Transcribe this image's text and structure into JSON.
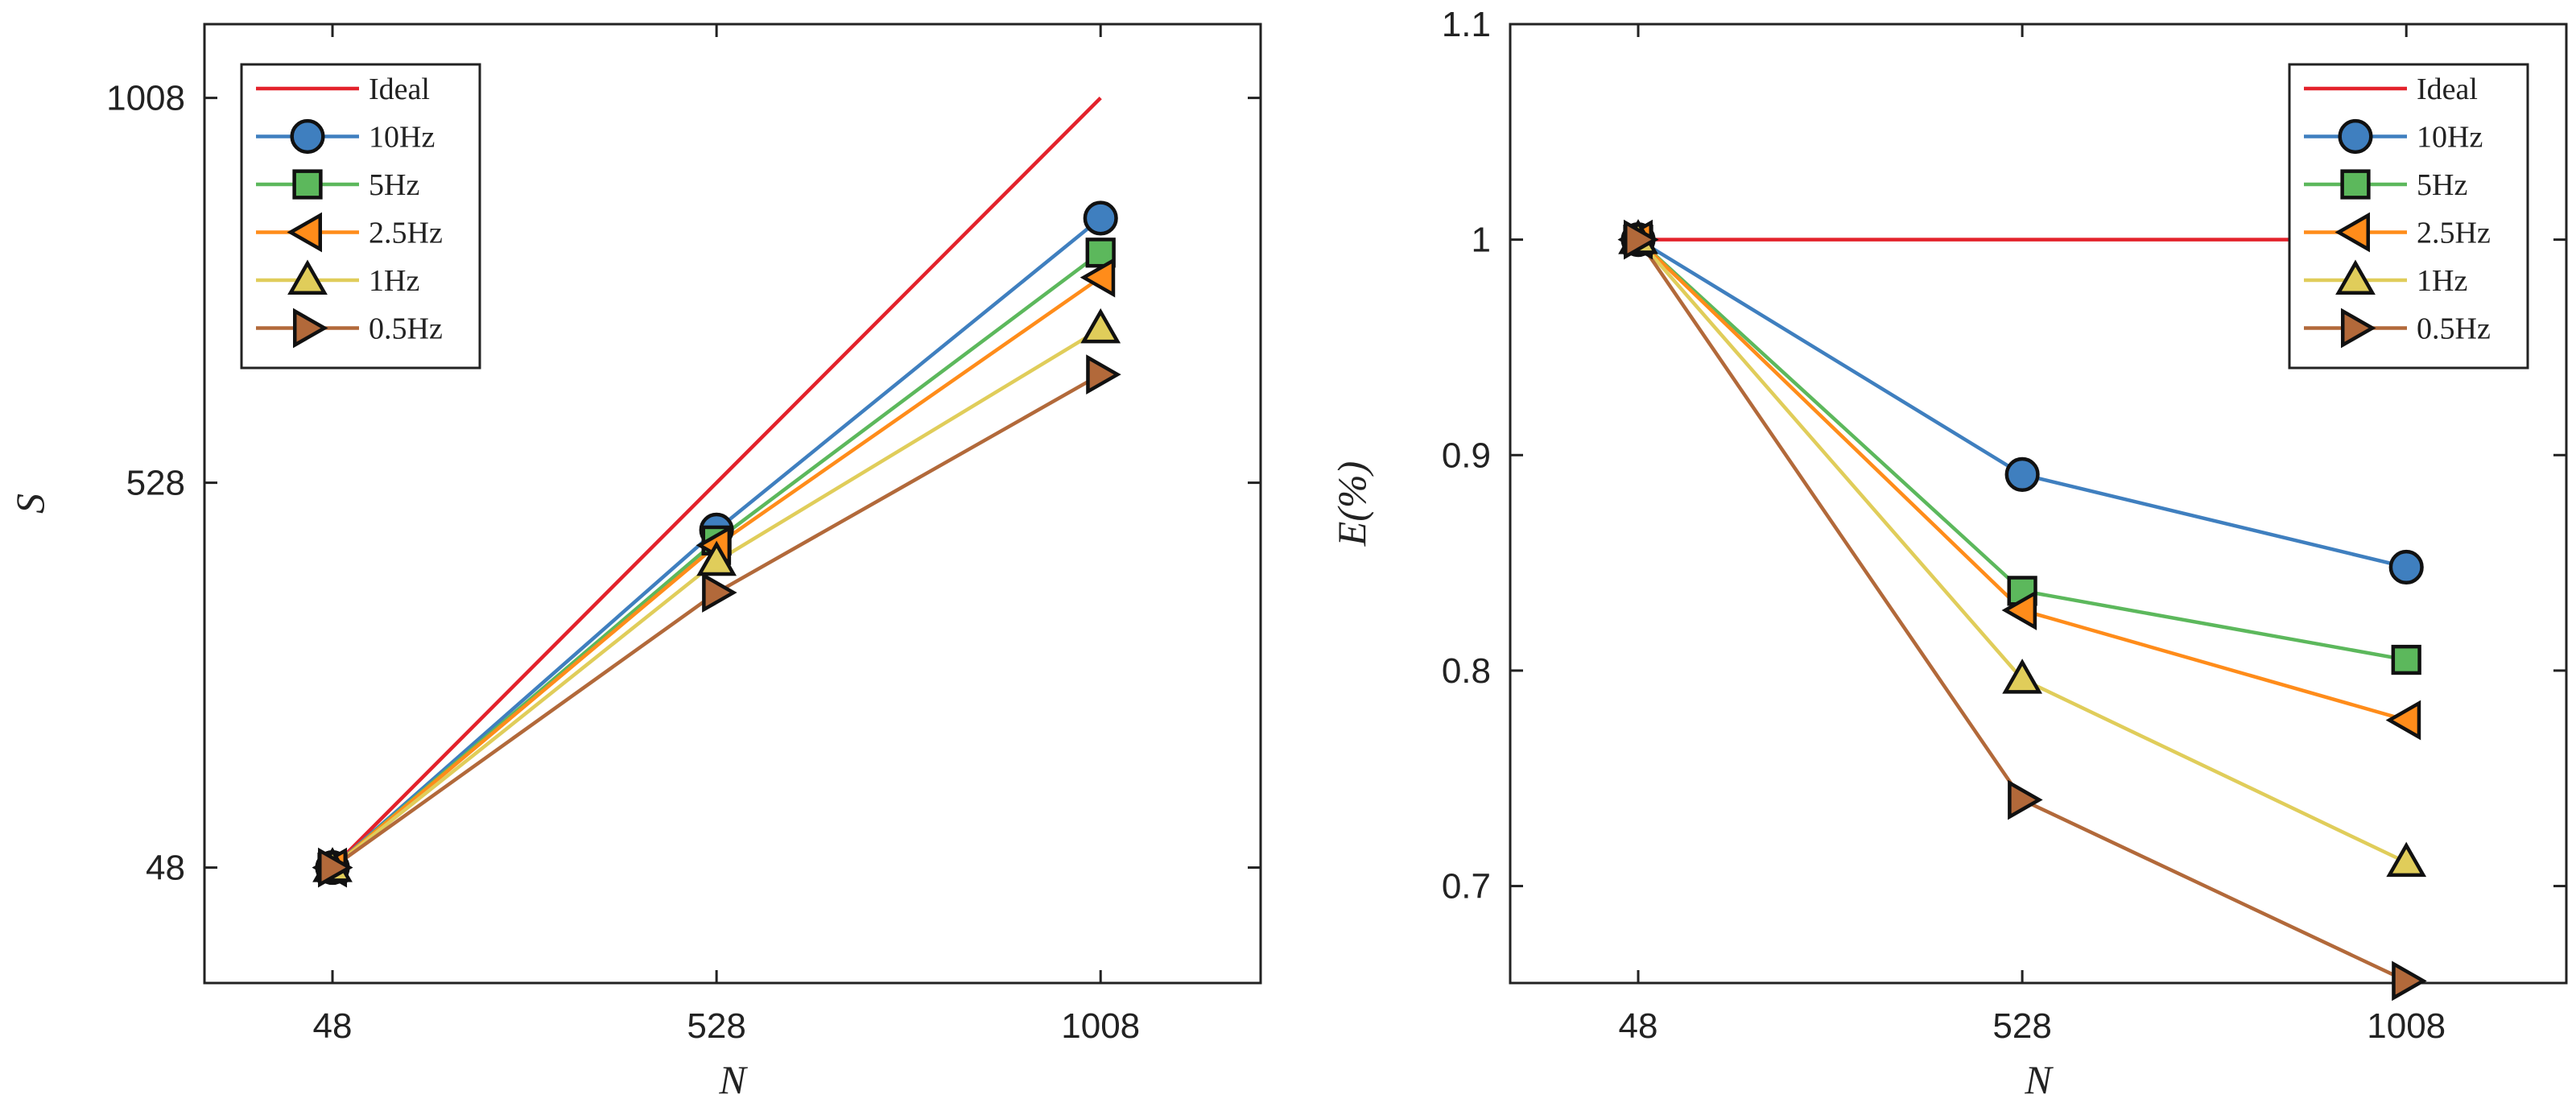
{
  "chart_data": [
    {
      "type": "line",
      "xlabel": "N",
      "ylabel": "S",
      "x": [
        48,
        528,
        1008
      ],
      "xticks": [
        "48",
        "528",
        "1008"
      ],
      "yticks": [
        "48",
        "528",
        "1008"
      ],
      "ytick_values": [
        48,
        528,
        1008
      ],
      "xlim": [
        -112,
        1208
      ],
      "ylim": [
        -96,
        1100
      ],
      "legend_position": "top-left",
      "series": [
        {
          "name": "Ideal",
          "marker": "none",
          "color": "#e3222b",
          "values": [
            48,
            528,
            1008
          ]
        },
        {
          "name": "10Hz",
          "marker": "circle",
          "color": "#3f7fbf",
          "values": [
            48,
            469,
            858
          ]
        },
        {
          "name": "5Hz",
          "marker": "square",
          "color": "#5cb85c",
          "values": [
            48,
            456,
            815
          ]
        },
        {
          "name": "2.5Hz",
          "marker": "triangle-left",
          "color": "#ff8c1a",
          "values": [
            48,
            450,
            784
          ]
        },
        {
          "name": "1Hz",
          "marker": "triangle-up",
          "color": "#e0cd5a",
          "values": [
            48,
            430,
            720
          ]
        },
        {
          "name": "0.5Hz",
          "marker": "triangle-right",
          "color": "#b2693a",
          "values": [
            48,
            391,
            663
          ]
        }
      ]
    },
    {
      "type": "line",
      "xlabel": "N",
      "ylabel": "E(%)",
      "x": [
        48,
        528,
        1008
      ],
      "xticks": [
        "48",
        "528",
        "1008"
      ],
      "yticks": [
        "0.7",
        "0.8",
        "0.9",
        "1",
        "1.1"
      ],
      "ytick_values": [
        0.7,
        0.8,
        0.9,
        1.0,
        1.1
      ],
      "xlim": [
        -112,
        1208
      ],
      "ylim": [
        0.655,
        1.1
      ],
      "legend_position": "top-right",
      "series": [
        {
          "name": "Ideal",
          "marker": "none",
          "color": "#e3222b",
          "values": [
            1.0,
            1.0,
            1.0
          ]
        },
        {
          "name": "10Hz",
          "marker": "circle",
          "color": "#3f7fbf",
          "values": [
            1.0,
            0.891,
            0.848
          ]
        },
        {
          "name": "5Hz",
          "marker": "square",
          "color": "#5cb85c",
          "values": [
            1.0,
            0.837,
            0.805
          ]
        },
        {
          "name": "2.5Hz",
          "marker": "triangle-left",
          "color": "#ff8c1a",
          "values": [
            1.0,
            0.828,
            0.777
          ]
        },
        {
          "name": "1Hz",
          "marker": "triangle-up",
          "color": "#e0cd5a",
          "values": [
            1.0,
            0.796,
            0.711
          ]
        },
        {
          "name": "0.5Hz",
          "marker": "triangle-right",
          "color": "#b2693a",
          "values": [
            1.0,
            0.74,
            0.656
          ]
        }
      ]
    }
  ]
}
